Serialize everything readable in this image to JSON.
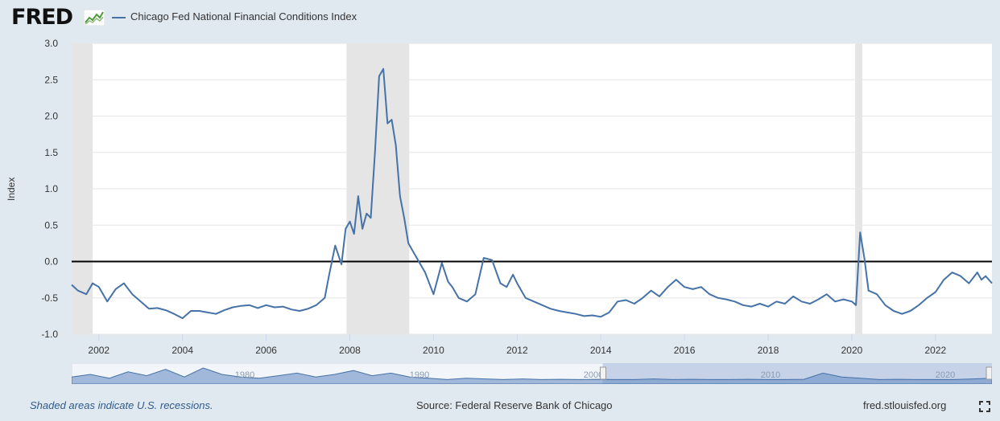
{
  "header": {
    "logo_text": "FRED",
    "series_name": "Chicago Fed National Financial Conditions Index"
  },
  "colors": {
    "line": "#4572a7",
    "recession": "#e5e5e5",
    "zero_line": "#000000",
    "background": "#e1e9f0"
  },
  "footer": {
    "note": "Shaded areas indicate U.S. recessions.",
    "source": "Source: Federal Reserve Bank of Chicago",
    "link": "fred.stlouisfed.org"
  },
  "navigator": {
    "labels": [
      "1980",
      "1990",
      "2000",
      "2010",
      "2020"
    ]
  },
  "chart_data": {
    "type": "line",
    "title": "",
    "ylabel": "Index",
    "xlim": [
      2001.35,
      2023.35
    ],
    "ylim": [
      -1.0,
      3.0
    ],
    "yticks": [
      -1.0,
      -0.5,
      0.0,
      0.5,
      1.0,
      1.5,
      2.0,
      2.5,
      3.0
    ],
    "ytick_labels": [
      "-1.0",
      "-0.5",
      "0.0",
      "0.5",
      "1.0",
      "1.5",
      "2.0",
      "2.5",
      "3.0"
    ],
    "xticks": [
      2002,
      2004,
      2006,
      2008,
      2010,
      2012,
      2014,
      2016,
      2018,
      2020,
      2022
    ],
    "xtick_labels": [
      "2002",
      "2004",
      "2006",
      "2008",
      "2010",
      "2012",
      "2014",
      "2016",
      "2018",
      "2020",
      "2022"
    ],
    "grid": true,
    "reference_line": 0,
    "recessions": [
      [
        2001.25,
        2001.85
      ],
      [
        2007.92,
        2009.42
      ],
      [
        2020.08,
        2020.25
      ]
    ],
    "series": [
      {
        "x": [
          2001.35,
          2001.5,
          2001.7,
          2001.85,
          2002.0,
          2002.2,
          2002.4,
          2002.6,
          2002.8,
          2003.0,
          2003.2,
          2003.4,
          2003.6,
          2003.8,
          2004.0,
          2004.2,
          2004.4,
          2004.6,
          2004.8,
          2005.0,
          2005.2,
          2005.4,
          2005.6,
          2005.8,
          2006.0,
          2006.2,
          2006.4,
          2006.6,
          2006.8,
          2007.0,
          2007.2,
          2007.4,
          2007.5,
          2007.65,
          2007.8,
          2007.9,
          2008.0,
          2008.1,
          2008.2,
          2008.3,
          2008.4,
          2008.5,
          2008.6,
          2008.7,
          2008.8,
          2008.9,
          2009.0,
          2009.1,
          2009.2,
          2009.3,
          2009.4,
          2009.6,
          2009.8,
          2010.0,
          2010.2,
          2010.35,
          2010.45,
          2010.6,
          2010.8,
          2011.0,
          2011.2,
          2011.4,
          2011.6,
          2011.75,
          2011.9,
          2012.0,
          2012.2,
          2012.4,
          2012.6,
          2012.8,
          2013.0,
          2013.2,
          2013.4,
          2013.6,
          2013.8,
          2014.0,
          2014.2,
          2014.4,
          2014.6,
          2014.8,
          2015.0,
          2015.2,
          2015.4,
          2015.6,
          2015.8,
          2016.0,
          2016.2,
          2016.4,
          2016.6,
          2016.8,
          2017.0,
          2017.2,
          2017.4,
          2017.6,
          2017.8,
          2018.0,
          2018.2,
          2018.4,
          2018.6,
          2018.8,
          2019.0,
          2019.2,
          2019.4,
          2019.6,
          2019.8,
          2020.0,
          2020.1,
          2020.2,
          2020.3,
          2020.4,
          2020.6,
          2020.8,
          2021.0,
          2021.2,
          2021.4,
          2021.6,
          2021.8,
          2022.0,
          2022.2,
          2022.4,
          2022.6,
          2022.8,
          2023.0,
          2023.1,
          2023.2,
          2023.35
        ],
        "y": [
          -0.32,
          -0.4,
          -0.45,
          -0.3,
          -0.35,
          -0.55,
          -0.38,
          -0.3,
          -0.45,
          -0.55,
          -0.65,
          -0.64,
          -0.67,
          -0.72,
          -0.78,
          -0.68,
          -0.68,
          -0.7,
          -0.72,
          -0.67,
          -0.63,
          -0.61,
          -0.6,
          -0.64,
          -0.6,
          -0.63,
          -0.62,
          -0.66,
          -0.68,
          -0.65,
          -0.6,
          -0.5,
          -0.2,
          0.22,
          -0.04,
          0.45,
          0.55,
          0.38,
          0.9,
          0.45,
          0.66,
          0.6,
          1.5,
          2.55,
          2.65,
          1.9,
          1.95,
          1.6,
          0.9,
          0.6,
          0.25,
          0.05,
          -0.15,
          -0.45,
          -0.02,
          -0.28,
          -0.35,
          -0.5,
          -0.55,
          -0.45,
          0.05,
          0.02,
          -0.3,
          -0.35,
          -0.18,
          -0.3,
          -0.5,
          -0.55,
          -0.6,
          -0.65,
          -0.68,
          -0.7,
          -0.72,
          -0.75,
          -0.74,
          -0.76,
          -0.7,
          -0.55,
          -0.53,
          -0.58,
          -0.5,
          -0.4,
          -0.48,
          -0.35,
          -0.25,
          -0.35,
          -0.38,
          -0.35,
          -0.45,
          -0.5,
          -0.52,
          -0.55,
          -0.6,
          -0.62,
          -0.58,
          -0.62,
          -0.55,
          -0.58,
          -0.48,
          -0.55,
          -0.58,
          -0.52,
          -0.45,
          -0.55,
          -0.52,
          -0.55,
          -0.6,
          0.4,
          0.05,
          -0.4,
          -0.45,
          -0.6,
          -0.68,
          -0.72,
          -0.68,
          -0.6,
          -0.5,
          -0.42,
          -0.25,
          -0.15,
          -0.2,
          -0.3,
          -0.15,
          -0.25,
          -0.2,
          -0.3
        ]
      }
    ]
  }
}
